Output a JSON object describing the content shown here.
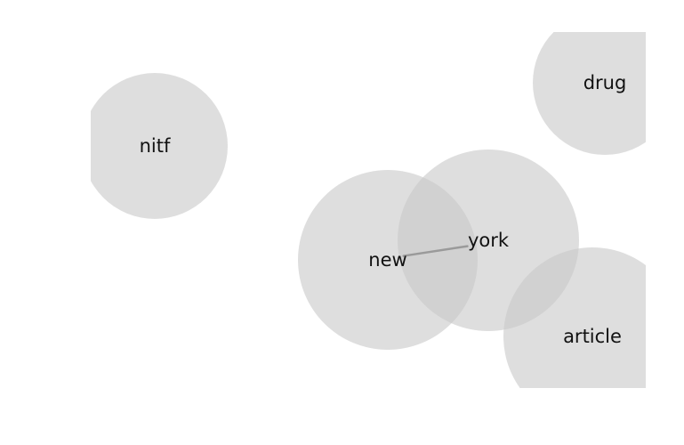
{
  "diagram": {
    "nodes": [
      {
        "id": "nitf",
        "label": "nitf"
      },
      {
        "id": "drug",
        "label": "drug"
      },
      {
        "id": "new",
        "label": "new"
      },
      {
        "id": "york",
        "label": "york"
      },
      {
        "id": "article",
        "label": "article"
      }
    ],
    "edges": [
      {
        "source": "new",
        "target": "york"
      }
    ],
    "colors": {
      "node_fill": "#c9c9c9",
      "edge": "#9a9a9a",
      "label": "#111111"
    }
  }
}
